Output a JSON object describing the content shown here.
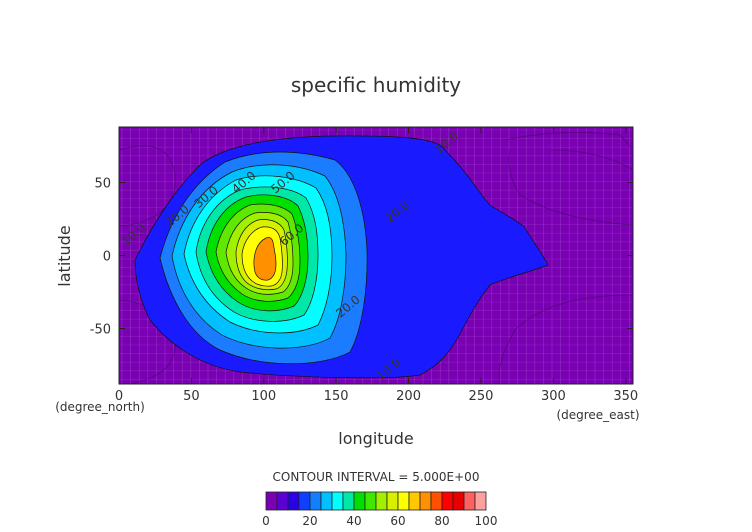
{
  "chart_data": {
    "type": "contour",
    "title": "specific humidity",
    "xlabel": "longitude",
    "ylabel": "latitude",
    "x_unit": "(degree_east)",
    "y_unit": "(degree_north)",
    "xlim": [
      0,
      355
    ],
    "ylim": [
      -88,
      88
    ],
    "x_ticks": [
      0,
      50,
      100,
      150,
      200,
      250,
      300,
      350
    ],
    "y_ticks": [
      -50,
      0,
      50
    ],
    "grid": false,
    "contour_interval_label": "CONTOUR INTERVAL = 5.000E+00",
    "colorbar": {
      "ticks": [
        0,
        20,
        40,
        60,
        80,
        100
      ],
      "levels": [
        0,
        5,
        10,
        15,
        20,
        25,
        30,
        35,
        40,
        45,
        50,
        55,
        60,
        65,
        70,
        75,
        80,
        85,
        90,
        95,
        100
      ],
      "colors": [
        "#7a00b4",
        "#5a00d2",
        "#2a00e6",
        "#1040ff",
        "#1080ff",
        "#00c0ff",
        "#00ffff",
        "#00e8a8",
        "#00e000",
        "#40e800",
        "#a0f000",
        "#d8f000",
        "#ffff00",
        "#ffc800",
        "#ff9000",
        "#ff5000",
        "#ff0000",
        "#e80000",
        "#ff6060",
        "#ffa0a0"
      ]
    },
    "contour_labels": [
      {
        "text": "10.0",
        "lon": 12,
        "lat": 12
      },
      {
        "text": "20.0",
        "lon": 42,
        "lat": 25
      },
      {
        "text": "30.0",
        "lon": 62,
        "lat": 38
      },
      {
        "text": "40.0",
        "lon": 88,
        "lat": 48
      },
      {
        "text": "50.0",
        "lon": 115,
        "lat": 48
      },
      {
        "text": "60.0",
        "lon": 121,
        "lat": 12
      },
      {
        "text": "20.0",
        "lon": 160,
        "lat": -37
      },
      {
        "text": "20.0",
        "lon": 194,
        "lat": 28
      },
      {
        "text": "10.0",
        "lon": 228,
        "lat": 75
      },
      {
        "text": "10.0",
        "lon": 188,
        "lat": -80
      }
    ]
  }
}
